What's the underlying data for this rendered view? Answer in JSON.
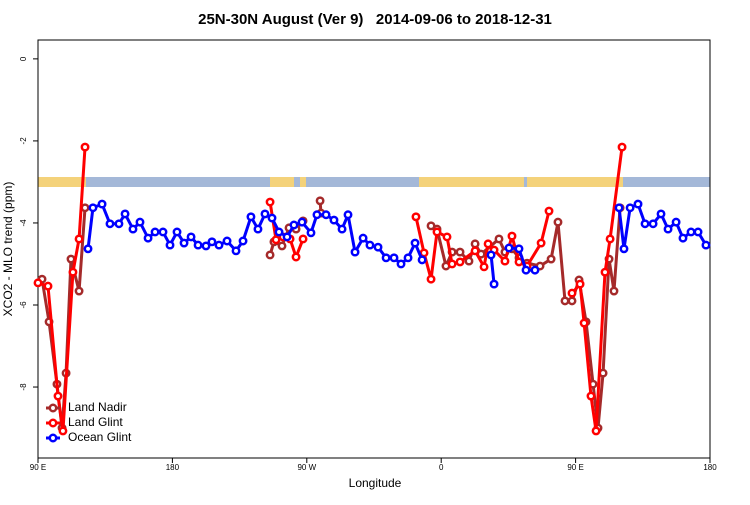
{
  "chart_data": {
    "type": "line",
    "title": "25N-30N August (Ver 9)   2014-09-06 to 2018-12-31",
    "x_label": "Longitude",
    "y_label": "XCO2 - MLO trend (ppm)",
    "xlim": [
      90,
      540
    ],
    "xticks": [
      {
        "value": 90,
        "label": "90 E"
      },
      180,
      {
        "value": 270,
        "label": "90 W"
      },
      {
        "value": 360,
        "label": "0"
      },
      {
        "value": 450,
        "label": "90 E"
      },
      {
        "value": 540,
        "label": "180"
      }
    ],
    "ylim": [
      -9.73,
      0.46
    ],
    "yticks": [
      0,
      -2,
      -4,
      -6,
      -8
    ],
    "legend": "bottom-left",
    "series": [
      {
        "name": "Land Nadir",
        "color": "#a52a2a",
        "x": [
          92.7,
          97.4,
          102.7,
          106.1,
          108.8,
          112.1,
          117.5,
          121.5,
          null,
          245.4,
          248.0,
          253.4,
          258.1,
          262.8,
          267.5,
          null,
          278.9,
          279.5,
          null,
          353.2,
          357.2,
          363.2,
          367.3,
          372.6,
          378.6,
          382.7,
          386.7,
          398.7,
          402.7,
          407.4,
          412.1,
          417.5,
          426.2,
          433.6,
          438.2,
          442.9,
          447.6,
          452.3,
          457.0,
          461.7,
          465.0,
          468.4,
          472.4,
          475.7,
          479.8
        ],
        "values": [
          -5.37,
          -6.41,
          -7.93,
          -9.0,
          -7.66,
          -4.88,
          -5.66,
          -3.63,
          null,
          -4.78,
          -4.46,
          -4.56,
          -4.12,
          -4.15,
          -3.95,
          null,
          -3.46,
          -3.76,
          null,
          -4.07,
          -4.15,
          -5.05,
          -4.71,
          -4.71,
          -4.93,
          -4.51,
          -4.76,
          -4.39,
          -4.71,
          -4.63,
          -4.85,
          -4.98,
          -5.05,
          -4.88,
          -3.98,
          -5.9,
          -5.9,
          -5.39,
          -6.41,
          -7.93,
          -9.0,
          -7.66,
          -4.88,
          -5.66,
          -3.63
        ]
      },
      {
        "name": "Land Glint",
        "color": "#ff0000",
        "x": [
          90.0,
          96.7,
          103.4,
          106.7,
          113.4,
          117.5,
          121.5,
          null,
          245.4,
          249.4,
          254.1,
          258.8,
          262.8,
          267.5,
          null,
          343.1,
          348.5,
          353.2,
          357.2,
          363.9,
          367.3,
          372.6,
          382.7,
          388.7,
          391.4,
          395.4,
          402.7,
          407.4,
          412.1,
          417.5,
          426.9,
          432.2,
          null,
          447.6,
          453.0,
          455.7,
          460.3,
          463.7,
          469.7,
          473.1,
          481.1
        ],
        "values": [
          -5.46,
          -5.54,
          -8.22,
          -9.07,
          -5.2,
          -4.39,
          -2.15,
          null,
          -3.49,
          -4.41,
          -4.34,
          -4.39,
          -4.83,
          -4.39,
          null,
          -3.85,
          -4.73,
          -5.37,
          -4.22,
          -4.34,
          -5.0,
          -4.95,
          -4.68,
          -5.07,
          -4.51,
          -4.66,
          -4.93,
          -4.32,
          -4.95,
          -5.05,
          -4.49,
          -3.71,
          null,
          -5.71,
          -5.49,
          -6.44,
          -8.22,
          -9.07,
          -5.2,
          -4.39,
          -2.15
        ]
      },
      {
        "name": "Ocean Glint",
        "color": "#0000ff",
        "x": [
          123.5,
          126.8,
          132.9,
          138.2,
          144.2,
          148.3,
          153.6,
          158.3,
          163.7,
          168.4,
          173.7,
          178.4,
          183.1,
          187.8,
          192.5,
          197.2,
          202.5,
          206.5,
          211.2,
          216.6,
          222.6,
          227.3,
          232.6,
          237.3,
          242.0,
          246.7,
          251.4,
          256.8,
          261.4,
          266.8,
          272.8,
          276.8,
          282.9,
          288.2,
          293.6,
          297.6,
          302.3,
          307.7,
          312.3,
          317.7,
          323.1,
          328.4,
          333.1,
          337.8,
          342.5,
          347.2,
          null,
          393.4,
          395.4,
          null,
          405.4,
          412.1,
          416.8,
          422.8,
          null,
          479.1,
          482.4,
          486.5,
          491.8,
          496.5,
          501.9,
          507.2,
          511.9,
          517.3,
          521.9,
          527.3,
          532.0,
          537.3
        ],
        "values": [
          -4.63,
          -3.63,
          -3.54,
          -4.02,
          -4.02,
          -3.78,
          -4.15,
          -3.98,
          -4.37,
          -4.22,
          -4.22,
          -4.54,
          -4.22,
          -4.49,
          -4.34,
          -4.54,
          -4.56,
          -4.46,
          -4.54,
          -4.44,
          -4.68,
          -4.44,
          -3.85,
          -4.15,
          -3.78,
          -3.88,
          -4.22,
          -4.34,
          -4.05,
          -3.98,
          -4.24,
          -3.8,
          -3.8,
          -3.93,
          -4.15,
          -3.8,
          -4.71,
          -4.37,
          -4.54,
          -4.59,
          -4.85,
          -4.85,
          -5.0,
          -4.85,
          -4.49,
          -4.9,
          null,
          -4.78,
          -5.49,
          null,
          -4.61,
          -4.63,
          -5.15,
          -5.15,
          null,
          -3.63,
          -4.63,
          -3.63,
          -3.54,
          -4.02,
          -4.02,
          -3.78,
          -4.15,
          -3.98,
          -4.37,
          -4.22,
          -4.22,
          -4.54
        ]
      }
    ]
  }
}
